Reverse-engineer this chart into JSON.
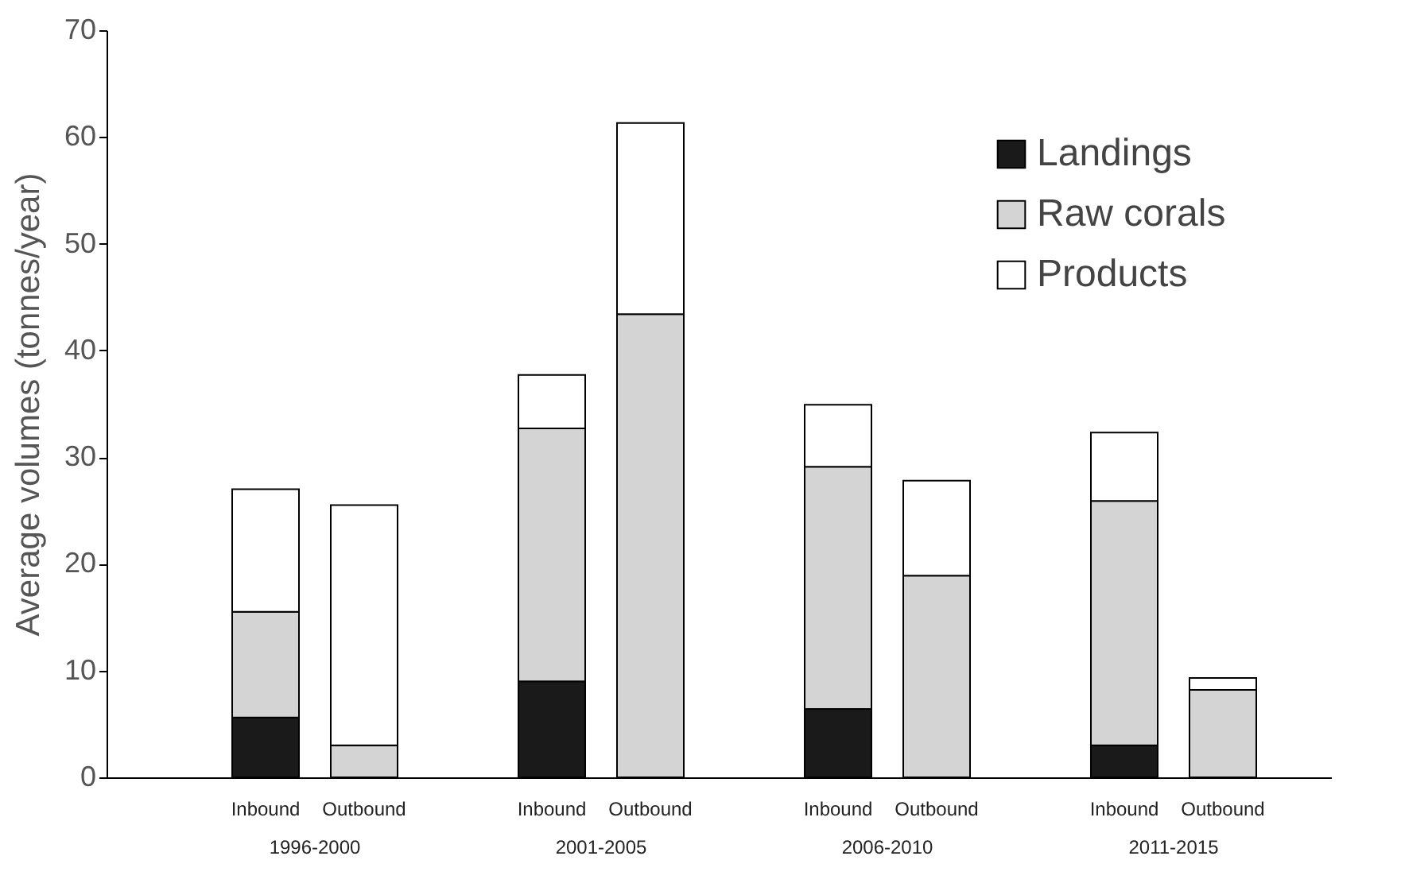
{
  "chart_data": {
    "type": "bar",
    "stacked": true,
    "ylabel": "Average volumes (tonnes/year)",
    "categories": [
      "Inbound",
      "Outbound",
      "Inbound",
      "Outbound",
      "Inbound",
      "Outbound",
      "Inbound",
      "Outbound"
    ],
    "annotations": [
      "1996-2000",
      "2001-2005",
      "2006-2010",
      "2011-2015"
    ],
    "series": [
      {
        "name": "Landings",
        "color": "#1a1a1a",
        "values": [
          5.6,
          0,
          9.0,
          0,
          6.4,
          0,
          3.0,
          0
        ]
      },
      {
        "name": "Raw corals",
        "color": "#d4d4d4",
        "values": [
          9.9,
          3.0,
          23.7,
          43.4,
          22.7,
          18.9,
          22.9,
          8.2
        ]
      },
      {
        "name": "Products",
        "color": "#ffffff",
        "values": [
          11.5,
          22.5,
          5.0,
          17.9,
          5.8,
          8.9,
          6.4,
          1.1
        ]
      }
    ],
    "ylim": [
      0,
      70
    ],
    "yticks": [
      0,
      10,
      20,
      30,
      40,
      50,
      60,
      70
    ],
    "grid": false,
    "legend": "top right"
  }
}
